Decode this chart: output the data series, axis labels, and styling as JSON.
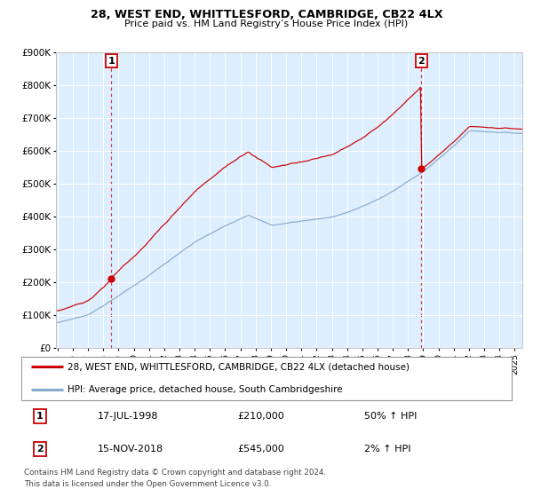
{
  "title1": "28, WEST END, WHITTLESFORD, CAMBRIDGE, CB22 4LX",
  "title2": "Price paid vs. HM Land Registry’s House Price Index (HPI)",
  "red_label": "28, WEST END, WHITTLESFORD, CAMBRIDGE, CB22 4LX (detached house)",
  "blue_label": "HPI: Average price, detached house, South Cambridgeshire",
  "ann1_date": "17-JUL-1998",
  "ann1_price": "£210,000",
  "ann1_hpi": "50% ↑ HPI",
  "ann2_date": "15-NOV-2018",
  "ann2_price": "£545,000",
  "ann2_hpi": "2% ↑ HPI",
  "footer": "Contains HM Land Registry data © Crown copyright and database right 2024.\nThis data is licensed under the Open Government Licence v3.0.",
  "red_color": "#cc0000",
  "blue_color": "#88aacc",
  "bg_color": "#ddeeff",
  "ylim": [
    0,
    900000
  ],
  "yticks": [
    0,
    100000,
    200000,
    300000,
    400000,
    500000,
    600000,
    700000,
    800000,
    900000
  ],
  "ytick_labels": [
    "£0",
    "£100K",
    "£200K",
    "£300K",
    "£400K",
    "£500K",
    "£600K",
    "£700K",
    "£800K",
    "£900K"
  ],
  "marker1_year": 1998.54,
  "marker1_val": 210000,
  "marker2_year": 2018.88,
  "marker2_val": 545000,
  "xmin": 1994.9,
  "xmax": 2025.5
}
